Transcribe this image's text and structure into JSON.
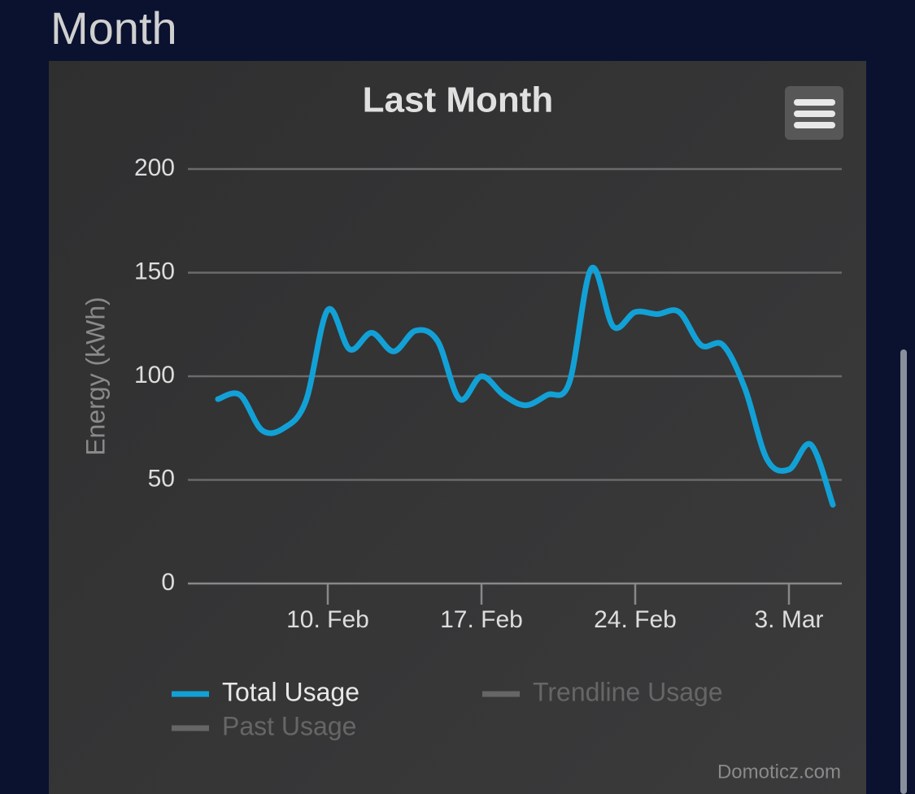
{
  "header": {
    "title": "Month"
  },
  "chart_data": {
    "type": "line",
    "title": "Last Month",
    "y_label": "Energy (kWh)",
    "credit": "Domoticz.com",
    "x": [
      "5. Feb",
      "6. Feb",
      "7. Feb",
      "8. Feb",
      "9. Feb",
      "10. Feb",
      "11. Feb",
      "12. Feb",
      "13. Feb",
      "14. Feb",
      "15. Feb",
      "16. Feb",
      "17. Feb",
      "18. Feb",
      "19. Feb",
      "20. Feb",
      "21. Feb",
      "22. Feb",
      "23. Feb",
      "24. Feb",
      "25. Feb",
      "26. Feb",
      "27. Feb",
      "28. Feb",
      "1. Mar",
      "2. Mar",
      "3. Mar",
      "4. Mar",
      "5. Mar"
    ],
    "xticks": [
      "10. Feb",
      "17. Feb",
      "24. Feb",
      "3. Mar"
    ],
    "ylim": [
      0,
      200
    ],
    "yticks": [
      0,
      50,
      100,
      150,
      200
    ],
    "grid": true,
    "series": [
      {
        "name": "Total Usage",
        "color": "#12a1d6",
        "visible": true,
        "values": [
          89,
          91,
          74,
          75,
          88,
          132,
          113,
          121,
          112,
          122,
          117,
          89,
          100,
          91,
          86,
          91,
          97,
          152,
          124,
          131,
          130,
          131,
          115,
          115,
          94,
          60,
          55,
          67,
          38
        ]
      },
      {
        "name": "Trendline Usage",
        "color": "#cccccc",
        "visible": false
      },
      {
        "name": "Past Usage",
        "color": "#cccccc",
        "visible": false
      }
    ]
  }
}
